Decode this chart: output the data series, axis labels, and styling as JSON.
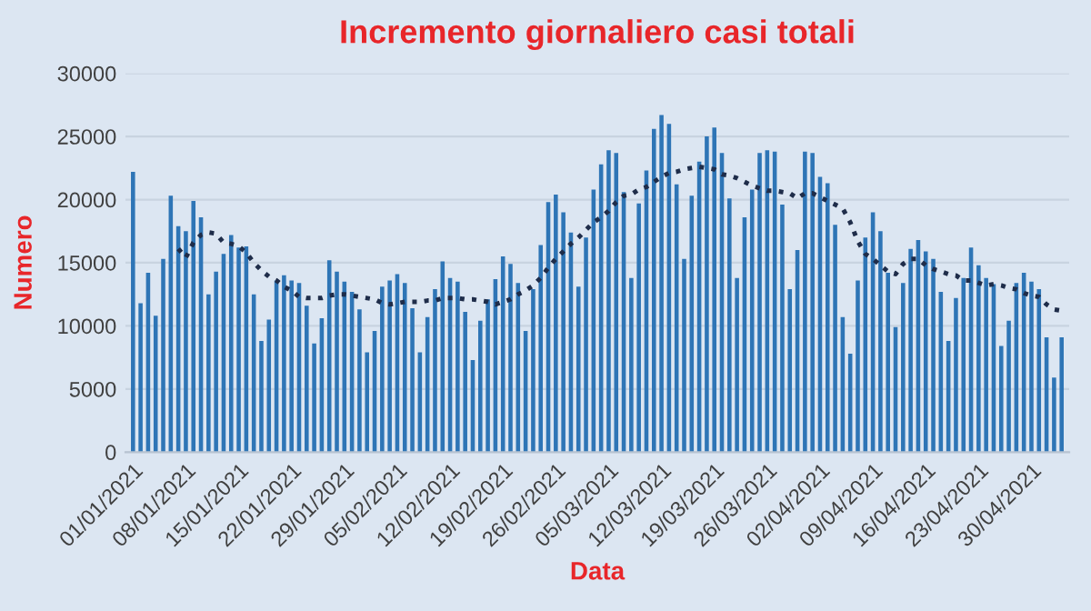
{
  "chart_data": {
    "type": "bar",
    "title": "Incremento giornaliero casi totali",
    "xlabel": "Data",
    "ylabel": "Numero",
    "categories": [
      "01/01/2021",
      null,
      null,
      null,
      null,
      null,
      null,
      "08/01/2021",
      null,
      null,
      null,
      null,
      null,
      null,
      "15/01/2021",
      null,
      null,
      null,
      null,
      null,
      null,
      "22/01/2021",
      null,
      null,
      null,
      null,
      null,
      null,
      "29/01/2021",
      null,
      null,
      null,
      null,
      null,
      null,
      "05/02/2021",
      null,
      null,
      null,
      null,
      null,
      null,
      "12/02/2021",
      null,
      null,
      null,
      null,
      null,
      null,
      "19/02/2021",
      null,
      null,
      null,
      null,
      null,
      null,
      "26/02/2021",
      null,
      null,
      null,
      null,
      null,
      null,
      "05/03/2021",
      null,
      null,
      null,
      null,
      null,
      null,
      "12/03/2021",
      null,
      null,
      null,
      null,
      null,
      null,
      "19/03/2021",
      null,
      null,
      null,
      null,
      null,
      null,
      "26/03/2021",
      null,
      null,
      null,
      null,
      null,
      null,
      "02/04/2021",
      null,
      null,
      null,
      null,
      null,
      null,
      "09/04/2021",
      null,
      null,
      null,
      null,
      null,
      null,
      "16/04/2021",
      null,
      null,
      null,
      null,
      null,
      null,
      "23/04/2021",
      null,
      null,
      null,
      null,
      null,
      null,
      "30/04/2021",
      null,
      null,
      null,
      null
    ],
    "series": [
      {
        "color": "#2e75b6",
        "values": [
          22200,
          11800,
          14200,
          10800,
          15300,
          20300,
          17900,
          17500,
          19900,
          18600,
          12500,
          14300,
          15700,
          17200,
          16200,
          16300,
          12500,
          8800,
          10500,
          13600,
          14000,
          13600,
          13400,
          11600,
          8600,
          10600,
          15200,
          14300,
          13500,
          12700,
          11300,
          7900,
          9600,
          13100,
          13600,
          14100,
          13400,
          11400,
          7900,
          10700,
          12900,
          15100,
          13800,
          13500,
          11100,
          7300,
          10400,
          12100,
          13700,
          15500,
          14900,
          13400,
          9600,
          12900,
          16400,
          19800,
          20400,
          19000,
          17400,
          13100,
          17000,
          20800,
          22800,
          23900,
          23700,
          20600,
          13800,
          19700,
          22300,
          25600,
          26700,
          26000,
          21200,
          15300,
          20300,
          23000,
          25000,
          25700,
          23700,
          20100,
          13800,
          18600,
          20800,
          23700,
          23900,
          23800,
          19600,
          12900,
          16000,
          23800,
          23700,
          21800,
          21300,
          18000,
          10700,
          7800,
          13600,
          17000,
          19000,
          17500,
          14200,
          9900,
          13400,
          16100,
          16800,
          15900,
          15300,
          12700,
          8800,
          12200,
          13800,
          16200,
          14800,
          13800,
          13300,
          8400,
          10400,
          13400,
          14200,
          13500,
          12900,
          9100,
          5900,
          9100
        ]
      },
      {
        "type": "line",
        "color": "#1f2d4a",
        "line_style": "dotted",
        "values": [
          null,
          null,
          null,
          null,
          null,
          null,
          16100,
          15400,
          16600,
          17200,
          17400,
          17300,
          16600,
          16500,
          16300,
          15800,
          15000,
          14400,
          13900,
          13600,
          13100,
          12800,
          12300,
          12200,
          12200,
          12200,
          12400,
          12500,
          12500,
          12400,
          12300,
          12200,
          12100,
          11800,
          11700,
          11800,
          11900,
          11900,
          11900,
          12000,
          12000,
          12200,
          12200,
          12200,
          12100,
          12100,
          12000,
          11900,
          11700,
          11900,
          12100,
          12500,
          12800,
          13200,
          13800,
          14600,
          15300,
          15900,
          16500,
          17000,
          17600,
          18200,
          18600,
          19100,
          19800,
          20300,
          20400,
          20800,
          21000,
          21400,
          21800,
          22100,
          22200,
          22400,
          22500,
          22600,
          22500,
          22400,
          22000,
          21900,
          21700,
          21400,
          21100,
          20900,
          20700,
          20700,
          20600,
          20500,
          20100,
          20500,
          20500,
          20200,
          19900,
          19600,
          19300,
          18200,
          16700,
          15700,
          15300,
          14800,
          14300,
          14100,
          14900,
          15300,
          15300,
          14800,
          14500,
          14300,
          14100,
          14000,
          13600,
          13600,
          13400,
          13200,
          13300,
          13200,
          13000,
          12900,
          12600,
          12400,
          12300,
          11700,
          11300,
          11200
        ]
      }
    ],
    "ylim": [
      0,
      30000
    ],
    "yticks": [
      0,
      5000,
      10000,
      15000,
      20000,
      25000,
      30000
    ],
    "grid": "y"
  }
}
